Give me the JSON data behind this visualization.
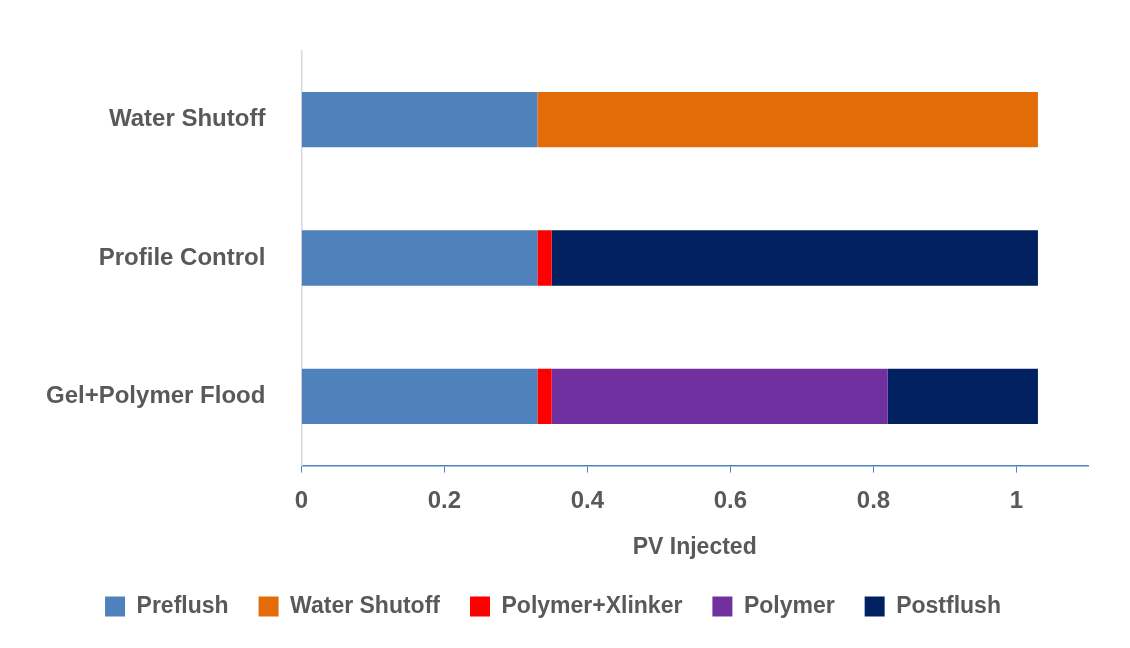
{
  "chart_data": {
    "type": "bar",
    "orientation": "horizontal",
    "stacked": true,
    "xlabel": "PV Injected",
    "categories": [
      "Water Shutoff",
      "Profile Control",
      "Gel+Polymer Flood"
    ],
    "series": [
      {
        "name": "Preflush",
        "color": "#4f81bd",
        "values": [
          0.33,
          0.33,
          0.33
        ]
      },
      {
        "name": "Water Shutoff",
        "color": "#e36c09",
        "values": [
          0.7,
          null,
          null
        ]
      },
      {
        "name": "Polymer+Xlinker",
        "color": "#ff0000",
        "values": [
          null,
          0.02,
          0.02
        ]
      },
      {
        "name": "Polymer",
        "color": "#7030a0",
        "values": [
          null,
          null,
          0.47
        ]
      },
      {
        "name": "Postflush",
        "color": "#002060",
        "values": [
          null,
          0.68,
          0.21
        ]
      }
    ],
    "xlim": [
      0,
      1.1
    ],
    "xticks": [
      0,
      0.2,
      0.4,
      0.6,
      0.8,
      1
    ],
    "grid": false,
    "legend": "bottom"
  }
}
